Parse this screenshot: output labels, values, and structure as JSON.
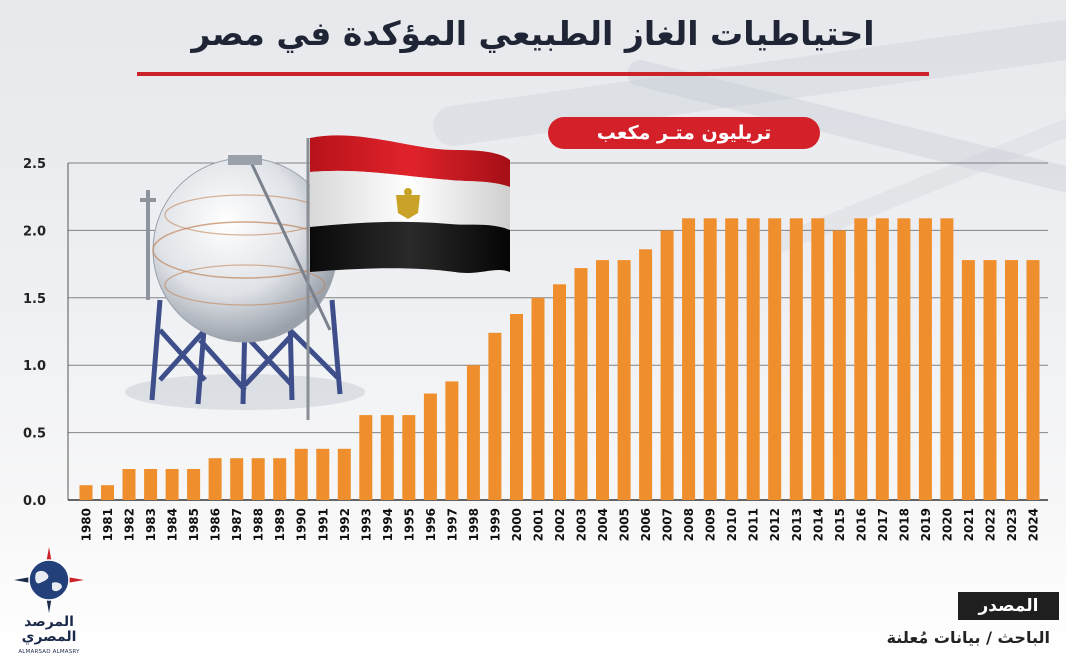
{
  "title": "احتياطيات الغاز الطبيعي المؤكدة في مصر",
  "unit": "تريليون متـر مكعب",
  "source": {
    "label": "المصدر",
    "text": "الباحث / بيانات مُعلنة"
  },
  "logo": {
    "name_line1": "المرصد",
    "name_line2": "المصري",
    "latin": "ALMARSAD ALMASRY"
  },
  "colors": {
    "bar": "#ef8e2c",
    "accent": "#cc2229",
    "title": "#1f2535"
  },
  "chart_data": {
    "type": "bar",
    "title": "احتياطيات الغاز الطبيعي المؤكدة في مصر",
    "ylabel": "تريليون متـر مكعب",
    "xlabel": "",
    "ylim": [
      0,
      2.5
    ],
    "yticks": [
      "0.0",
      "0.5",
      "1.0",
      "1.5",
      "2.0",
      "2.5"
    ],
    "grid": true,
    "categories": [
      "1980",
      "1981",
      "1982",
      "1983",
      "1984",
      "1985",
      "1986",
      "1987",
      "1988",
      "1989",
      "1990",
      "1991",
      "1992",
      "1993",
      "1994",
      "1995",
      "1996",
      "1997",
      "1998",
      "1999",
      "2000",
      "2001",
      "2002",
      "2003",
      "2004",
      "2005",
      "2006",
      "2007",
      "2008",
      "2009",
      "2010",
      "2011",
      "2012",
      "2013",
      "2014",
      "2015",
      "2016",
      "2017",
      "2018",
      "2019",
      "2020",
      "2021",
      "2022",
      "2023",
      "2024"
    ],
    "values": [
      0.11,
      0.11,
      0.23,
      0.23,
      0.23,
      0.23,
      0.31,
      0.31,
      0.31,
      0.31,
      0.38,
      0.38,
      0.38,
      0.63,
      0.63,
      0.63,
      0.79,
      0.88,
      1.0,
      1.24,
      1.38,
      1.5,
      1.6,
      1.72,
      1.78,
      1.78,
      1.86,
      2.0,
      2.09,
      2.09,
      2.09,
      2.09,
      2.09,
      2.09,
      2.09,
      2.0,
      2.09,
      2.09,
      2.09,
      2.09,
      2.09,
      1.78,
      1.78,
      1.78,
      1.78
    ]
  }
}
